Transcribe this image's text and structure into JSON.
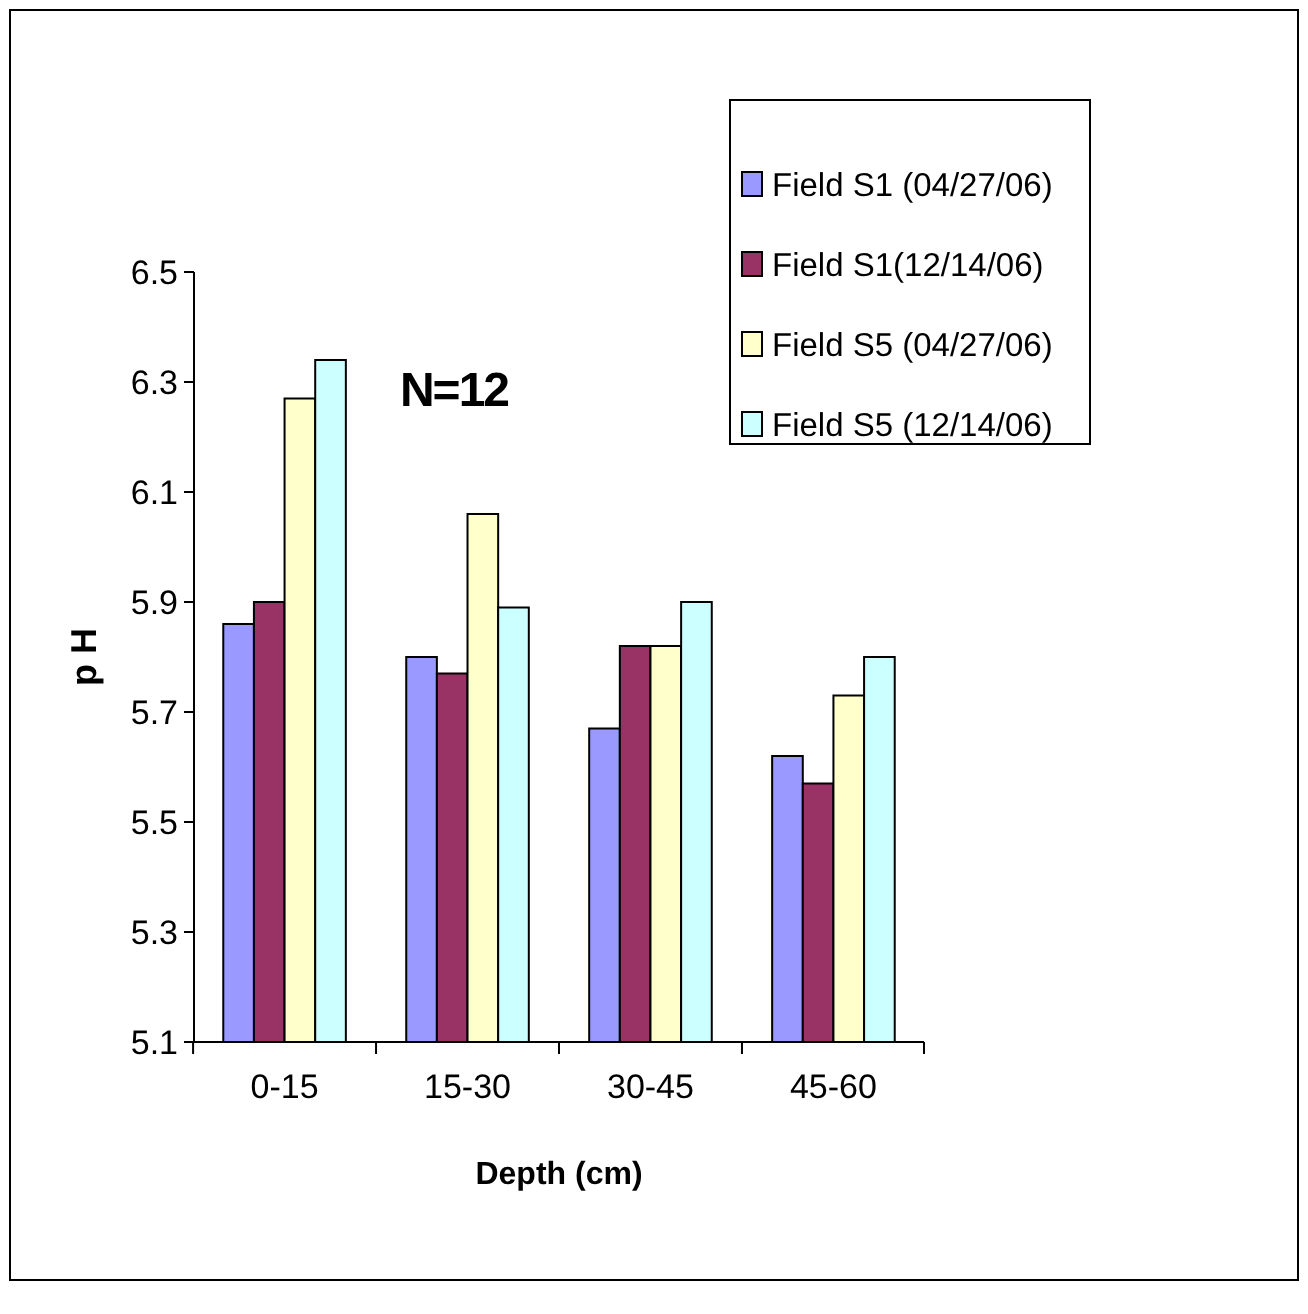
{
  "chart_data": {
    "type": "bar",
    "xlabel": "Depth (cm)",
    "ylabel": "p H",
    "categories": [
      "0-15",
      "15-30",
      "30-45",
      "45-60"
    ],
    "series": [
      {
        "name": "Field S1 (04/27/06)",
        "color": "#9999ff",
        "values": [
          5.86,
          5.8,
          5.67,
          5.62
        ]
      },
      {
        "name": "Field S1(12/14/06)",
        "color": "#993366",
        "values": [
          5.9,
          5.77,
          5.82,
          5.57
        ]
      },
      {
        "name": "Field S5 (04/27/06)",
        "color": "#ffffcc",
        "values": [
          6.27,
          6.06,
          5.82,
          5.73
        ]
      },
      {
        "name": "Field S5 (12/14/06)",
        "color": "#ccffff",
        "values": [
          6.34,
          5.89,
          5.9,
          5.8
        ]
      }
    ],
    "ylim": [
      5.1,
      6.5
    ],
    "yticks": [
      5.1,
      5.3,
      5.5,
      5.7,
      5.9,
      6.1,
      6.3,
      6.5
    ],
    "annotations": [
      "N=12"
    ],
    "legend": "top right",
    "grid": false
  }
}
